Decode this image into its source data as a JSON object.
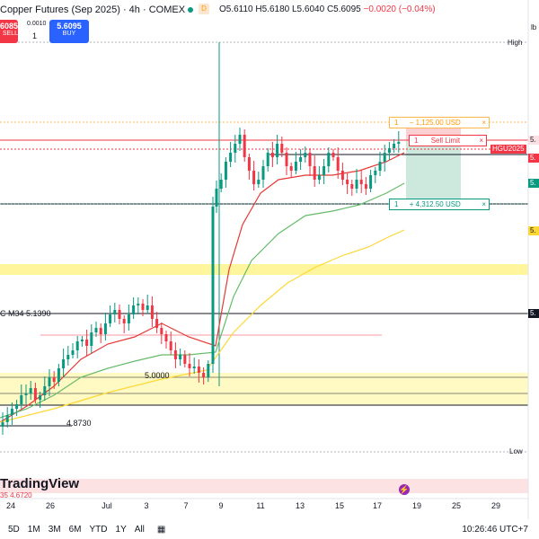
{
  "header": {
    "symbol_title": "Copper Futures (Sep 2025) · 4h · COMEX",
    "ohlc": {
      "o": "O5.6110",
      "h": "H5.6180",
      "l": "L5.6040",
      "c": "C5.6095",
      "chg": "−0.0020 (−0.04%)"
    },
    "session_badge": "D"
  },
  "trade_panel": {
    "sell_price": "5.6085",
    "sell_label": "SELL",
    "spread": "0.0010",
    "quantity": "1",
    "buy_price": "5.6095",
    "buy_label": "BUY"
  },
  "orders": {
    "tp_qty": "1",
    "tp_label": "− 1,125.00 USD",
    "sell_limit_qty": "1",
    "sell_limit_label": "Sell Limit",
    "sl_qty": "1",
    "sl_label": "+ 4,312.50 USD",
    "close_glyph": "×"
  },
  "price_scale": {
    "currency": "lb",
    "high_label": "High",
    "low_label": "Low",
    "symbol_tag": "HGU2025",
    "tick_prefix": "5."
  },
  "annotations": {
    "ma_label": "C M34 5.1390",
    "level_5000": "5.0000",
    "level_4873": "4.8730",
    "prev_level": "35  4.6720"
  },
  "x_axis": {
    "ticks": [
      "24",
      "26",
      "Jul",
      "3",
      "5",
      "7",
      "9",
      "11",
      "13",
      "15",
      "17",
      "19",
      "23",
      "25",
      "27",
      "29"
    ]
  },
  "timeframes": [
    "5D",
    "1M",
    "3M",
    "6M",
    "YTD",
    "1Y",
    "All"
  ],
  "clock": "10:26:46 UTC+7",
  "brand": "TradingView",
  "colors": {
    "up": "#089981",
    "down": "#f23645",
    "ema_red": "#e53935",
    "ema_green": "#66bb6a",
    "ema_yellow": "#fdd835",
    "zone": "#fff59d",
    "sl_zone": "#c8e6d8",
    "blue": "#2962ff"
  }
}
